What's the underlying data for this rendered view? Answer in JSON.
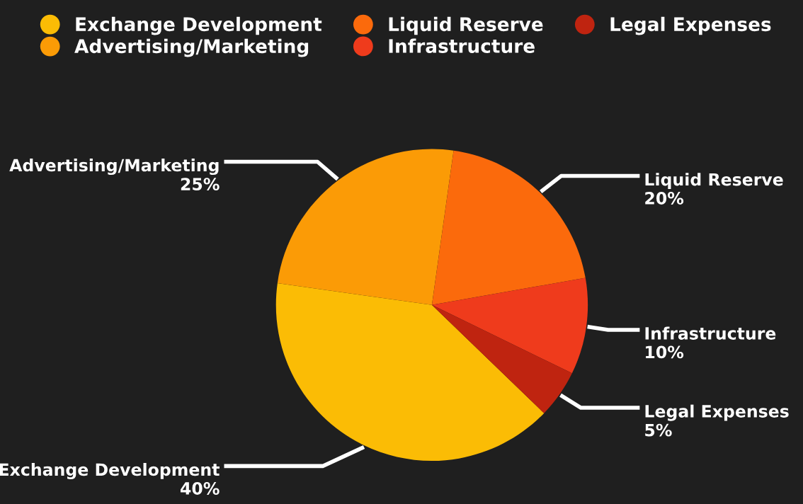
{
  "chart_data": {
    "type": "pie",
    "categories": [
      "Exchange Development",
      "Advertising/Marketing",
      "Liquid Reserve",
      "Infrastructure",
      "Legal Expenses"
    ],
    "values": [
      40,
      25,
      20,
      10,
      5
    ],
    "value_labels": [
      "40%",
      "25%",
      "20%",
      "10%",
      "5%"
    ],
    "colors": [
      "#fbbc05",
      "#fb9b06",
      "#fb6a0c",
      "#ef3b1c",
      "#bf2410"
    ],
    "legend": "top"
  }
}
